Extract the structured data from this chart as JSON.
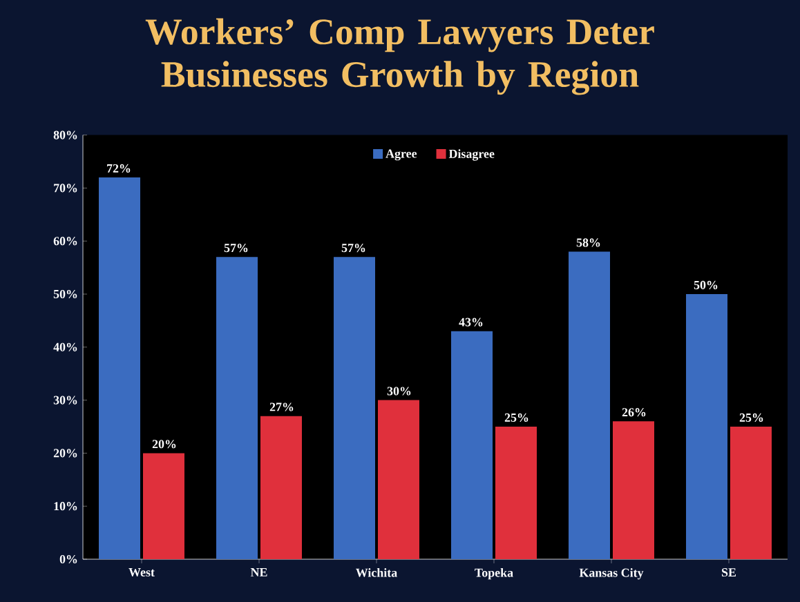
{
  "chart_data": {
    "type": "bar",
    "title": "Workers’ Comp Lawyers Deter Businesses Growth by Region",
    "categories": [
      "West",
      "NE",
      "Wichita",
      "Topeka",
      "Kansas City",
      "SE"
    ],
    "series": [
      {
        "name": "Agree",
        "color": "#3b6cc0",
        "values": [
          72,
          57,
          57,
          43,
          58,
          50
        ]
      },
      {
        "name": "Disagree",
        "color": "#e0303c",
        "values": [
          20,
          27,
          30,
          25,
          26,
          25
        ]
      }
    ],
    "ylim": [
      0,
      80
    ],
    "yticks": [
      {
        "value": 0,
        "label": "0%"
      },
      {
        "value": 10,
        "label": "10%"
      },
      {
        "value": 20,
        "label": "20%"
      },
      {
        "value": 30,
        "label": "30%"
      },
      {
        "value": 40,
        "label": "40%"
      },
      {
        "value": 50,
        "label": "50%"
      },
      {
        "value": 60,
        "label": "60%"
      },
      {
        "value": 70,
        "label": "70%"
      },
      {
        "value": 80,
        "label": "80%"
      }
    ],
    "value_labels": [
      [
        "72%",
        "57%",
        "57%",
        "43%",
        "58%",
        "50%"
      ],
      [
        "20%",
        "27%",
        "30%",
        "25%",
        "26%",
        "25%"
      ]
    ],
    "legend": "top",
    "grid": false
  }
}
